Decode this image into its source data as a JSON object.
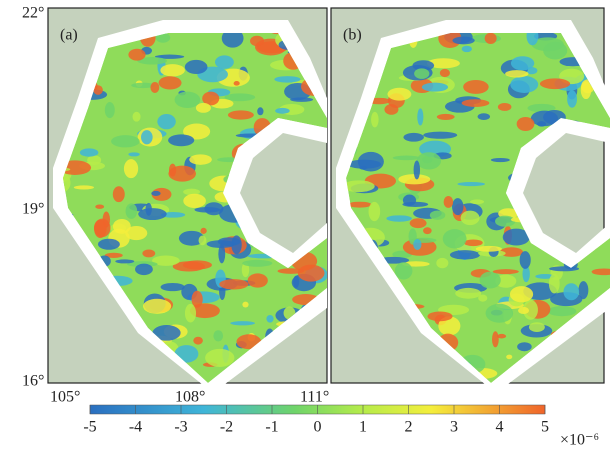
{
  "panels": [
    {
      "label": "(a)"
    },
    {
      "label": "(b)"
    }
  ],
  "latitude_labels": [
    "22°",
    "19°",
    "16°"
  ],
  "longitude_labels": [
    "105°",
    "108°",
    "111°"
  ],
  "colorbar": {
    "ticks": [
      -5,
      -4,
      -3,
      -2,
      -1,
      0,
      1,
      2,
      3,
      4,
      5
    ],
    "scale_label": "×10⁻⁶"
  }
}
